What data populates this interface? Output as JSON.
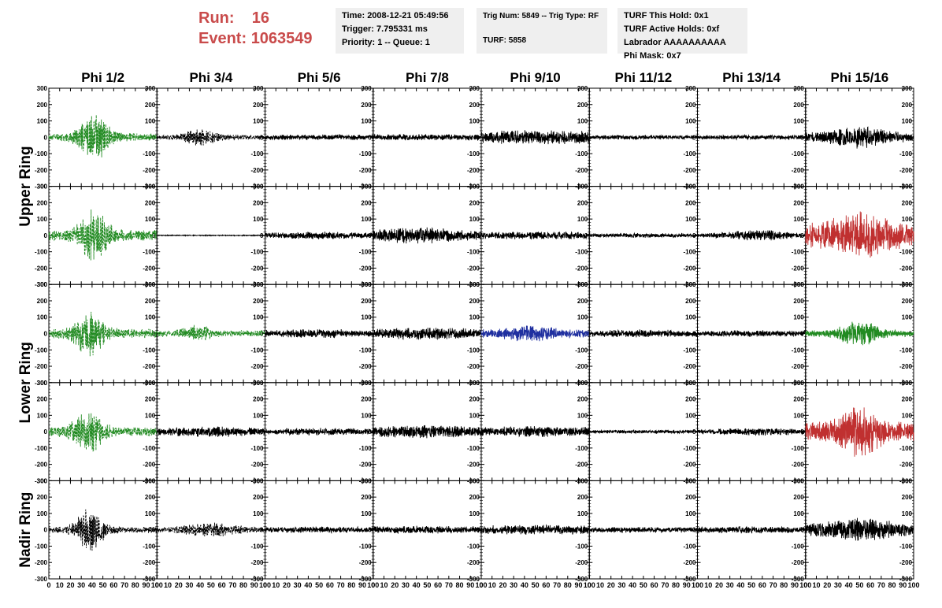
{
  "header": {
    "run_label": "Run:",
    "run_value": "16",
    "event_label": "Event:",
    "event_value": "1063549"
  },
  "info_boxes": {
    "time": "Time: 2008-12-21 05:49:56",
    "trigger": "Trigger: 7.795331 ms",
    "priority": "Priority: 1 -- Queue: 1",
    "trig_num": "Trig Num: 5849 -- Trig Type: RF",
    "turf": "TURF: 5858",
    "turf_this_hold": "TURF This Hold: 0x1",
    "turf_active_holds": "TURF Active Holds: 0xf",
    "labrador": "Labrador AAAAAAAAAA",
    "phi_mask": "Phi Mask: 0x7"
  },
  "chart_data": {
    "type": "line",
    "columns": [
      "Phi 1/2",
      "Phi 3/4",
      "Phi 5/6",
      "Phi 7/8",
      "Phi 9/10",
      "Phi 11/12",
      "Phi 13/14",
      "Phi 15/16"
    ],
    "ring_labels": [
      "Upper Ring",
      "Lower Ring",
      "Nadir Ring"
    ],
    "ring_rows": [
      [
        0,
        1
      ],
      [
        2,
        3
      ],
      [
        4,
        4
      ]
    ],
    "rows": 5,
    "xlim": [
      0,
      100
    ],
    "ylim": [
      -300,
      300
    ],
    "x_ticks": [
      0,
      10,
      20,
      30,
      40,
      50,
      60,
      70,
      80,
      90,
      100
    ],
    "y_ticks": [
      -300,
      -200,
      -100,
      0,
      100,
      200,
      300
    ],
    "grid": false,
    "colors": {
      "black": "#000000",
      "green": "#228b22",
      "red": "#c03030",
      "blue": "#2030a0"
    },
    "waveforms": [
      [
        {
          "color": "green",
          "dashed": true,
          "amp": 150,
          "center": 42,
          "width": 14,
          "base": 25
        },
        {
          "color": "black",
          "dashed": true,
          "amp": 55,
          "center": 40,
          "width": 16,
          "base": 15
        },
        {
          "color": "black",
          "dashed": false,
          "amp": 18,
          "center": 50,
          "width": 50,
          "base": 15
        },
        {
          "color": "black",
          "dashed": false,
          "amp": 20,
          "center": 50,
          "width": 50,
          "base": 18
        },
        {
          "color": "black",
          "dashed": false,
          "amp": 45,
          "center": 50,
          "width": 50,
          "base": 35
        },
        {
          "color": "black",
          "dashed": false,
          "amp": 15,
          "center": 50,
          "width": 50,
          "base": 12
        },
        {
          "color": "black",
          "dashed": false,
          "amp": 15,
          "center": 50,
          "width": 50,
          "base": 12
        },
        {
          "color": "black",
          "dashed": false,
          "amp": 70,
          "center": 50,
          "width": 25,
          "base": 30
        }
      ],
      [
        {
          "color": "green",
          "dashed": true,
          "amp": 170,
          "center": 42,
          "width": 14,
          "base": 35
        },
        {
          "color": "black",
          "dashed": false,
          "amp": 3,
          "center": 50,
          "width": 50,
          "base": 3
        },
        {
          "color": "black",
          "dashed": false,
          "amp": 25,
          "center": 50,
          "width": 40,
          "base": 15
        },
        {
          "color": "black",
          "dashed": false,
          "amp": 55,
          "center": 40,
          "width": 30,
          "base": 30
        },
        {
          "color": "black",
          "dashed": false,
          "amp": 25,
          "center": 50,
          "width": 50,
          "base": 20
        },
        {
          "color": "black",
          "dashed": false,
          "amp": 15,
          "center": 50,
          "width": 50,
          "base": 10
        },
        {
          "color": "black",
          "dashed": false,
          "amp": 35,
          "center": 55,
          "width": 30,
          "base": 12
        },
        {
          "color": "red",
          "dashed": false,
          "amp": 150,
          "center": 50,
          "width": 25,
          "base": 80
        }
      ],
      [
        {
          "color": "green",
          "dashed": true,
          "amp": 150,
          "center": 38,
          "width": 14,
          "base": 30
        },
        {
          "color": "green",
          "dashed": true,
          "amp": 55,
          "center": 38,
          "width": 14,
          "base": 20
        },
        {
          "color": "black",
          "dashed": false,
          "amp": 30,
          "center": 50,
          "width": 40,
          "base": 15
        },
        {
          "color": "black",
          "dashed": false,
          "amp": 40,
          "center": 50,
          "width": 40,
          "base": 25
        },
        {
          "color": "blue",
          "dashed": false,
          "amp": 55,
          "center": 45,
          "width": 25,
          "base": 25
        },
        {
          "color": "black",
          "dashed": false,
          "amp": 25,
          "center": 50,
          "width": 50,
          "base": 15
        },
        {
          "color": "black",
          "dashed": false,
          "amp": 20,
          "center": 50,
          "width": 50,
          "base": 15
        },
        {
          "color": "green",
          "dashed": false,
          "amp": 90,
          "center": 50,
          "width": 18,
          "base": 20
        }
      ],
      [
        {
          "color": "green",
          "dashed": true,
          "amp": 150,
          "center": 36,
          "width": 14,
          "base": 30
        },
        {
          "color": "black",
          "dashed": false,
          "amp": 35,
          "center": 50,
          "width": 40,
          "base": 20
        },
        {
          "color": "black",
          "dashed": false,
          "amp": 25,
          "center": 50,
          "width": 40,
          "base": 15
        },
        {
          "color": "black",
          "dashed": false,
          "amp": 45,
          "center": 50,
          "width": 40,
          "base": 25
        },
        {
          "color": "black",
          "dashed": false,
          "amp": 35,
          "center": 50,
          "width": 45,
          "base": 25
        },
        {
          "color": "black",
          "dashed": false,
          "amp": 12,
          "center": 50,
          "width": 50,
          "base": 10
        },
        {
          "color": "black",
          "dashed": false,
          "amp": 25,
          "center": 60,
          "width": 40,
          "base": 15
        },
        {
          "color": "red",
          "dashed": false,
          "amp": 160,
          "center": 50,
          "width": 20,
          "base": 60
        }
      ],
      [
        {
          "color": "black",
          "dashed": true,
          "amp": 140,
          "center": 38,
          "width": 14,
          "base": 20
        },
        {
          "color": "black",
          "dashed": true,
          "amp": 45,
          "center": 50,
          "width": 30,
          "base": 15
        },
        {
          "color": "black",
          "dashed": false,
          "amp": 20,
          "center": 50,
          "width": 50,
          "base": 15
        },
        {
          "color": "black",
          "dashed": false,
          "amp": 25,
          "center": 50,
          "width": 50,
          "base": 20
        },
        {
          "color": "black",
          "dashed": false,
          "amp": 30,
          "center": 50,
          "width": 50,
          "base": 28
        },
        {
          "color": "black",
          "dashed": false,
          "amp": 18,
          "center": 50,
          "width": 50,
          "base": 15
        },
        {
          "color": "black",
          "dashed": false,
          "amp": 22,
          "center": 50,
          "width": 50,
          "base": 18
        },
        {
          "color": "black",
          "dashed": false,
          "amp": 75,
          "center": 50,
          "width": 30,
          "base": 40
        }
      ]
    ]
  }
}
